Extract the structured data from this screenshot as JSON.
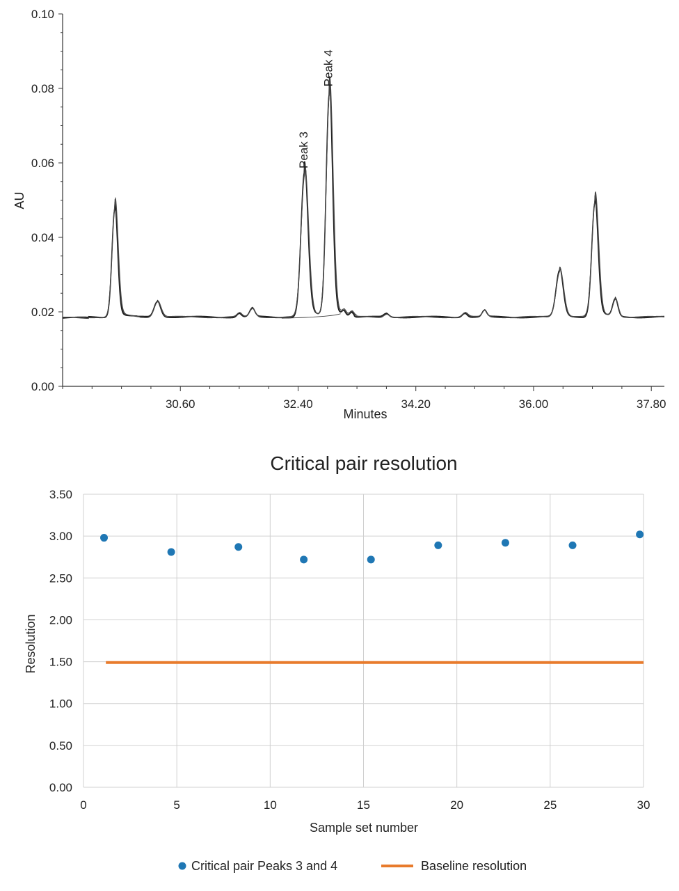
{
  "chart_data": [
    {
      "type": "line",
      "title": "",
      "xlabel": "Minutes",
      "ylabel": "AU",
      "xlim": [
        28.8,
        38.0
      ],
      "ylim": [
        0.0,
        0.1
      ],
      "x_ticks": [
        30.6,
        32.4,
        34.2,
        36.0,
        37.8
      ],
      "x_tick_labels": [
        "30.60",
        "32.40",
        "34.20",
        "36.00",
        "37.80"
      ],
      "y_ticks": [
        0.0,
        0.02,
        0.04,
        0.06,
        0.08,
        0.1
      ],
      "y_tick_labels": [
        "0.00",
        "0.02",
        "0.04",
        "0.06",
        "0.08",
        "0.10"
      ],
      "grid": false,
      "baseline_level": 0.0186,
      "peaks": [
        {
          "x": 29.6,
          "height": 0.048,
          "width": 0.045
        },
        {
          "x": 30.25,
          "height": 0.0228,
          "width": 0.05
        },
        {
          "x": 31.5,
          "height": 0.0196,
          "width": 0.035
        },
        {
          "x": 31.7,
          "height": 0.0208,
          "width": 0.04
        },
        {
          "x": 32.5,
          "height": 0.057,
          "width": 0.055
        },
        {
          "x": 32.88,
          "height": 0.0785,
          "width": 0.05
        },
        {
          "x": 33.1,
          "height": 0.0198,
          "width": 0.03
        },
        {
          "x": 33.22,
          "height": 0.0197,
          "width": 0.03
        },
        {
          "x": 33.75,
          "height": 0.0195,
          "width": 0.04
        },
        {
          "x": 34.95,
          "height": 0.0197,
          "width": 0.04
        },
        {
          "x": 35.25,
          "height": 0.0203,
          "width": 0.035
        },
        {
          "x": 36.4,
          "height": 0.031,
          "width": 0.055
        },
        {
          "x": 36.94,
          "height": 0.0495,
          "width": 0.05
        },
        {
          "x": 37.25,
          "height": 0.0232,
          "width": 0.04
        }
      ],
      "annotations": [
        {
          "text": "Peak 3",
          "x": 32.5,
          "y": 0.0585
        },
        {
          "text": "Peak 4",
          "x": 32.88,
          "y": 0.0805
        }
      ]
    },
    {
      "type": "scatter",
      "title": "Critical pair resolution",
      "xlabel": "Sample set number",
      "ylabel": "Resolution",
      "xlim": [
        0,
        30
      ],
      "ylim": [
        0,
        3.5
      ],
      "x_ticks": [
        0,
        5,
        10,
        15,
        20,
        25,
        30
      ],
      "x_tick_labels": [
        "0",
        "5",
        "10",
        "15",
        "20",
        "25",
        "30"
      ],
      "y_ticks": [
        0,
        0.5,
        1.0,
        1.5,
        2.0,
        2.5,
        3.0,
        3.5
      ],
      "y_tick_labels": [
        "0.00",
        "0.50",
        "1.00",
        "1.50",
        "2.00",
        "2.50",
        "3.00",
        "3.50"
      ],
      "grid": true,
      "legend_position": "bottom",
      "series": [
        {
          "name": "Critical pair Peaks 3 and 4",
          "kind": "scatter",
          "color": "#1f77b4",
          "x": [
            1.1,
            4.7,
            8.3,
            11.8,
            15.4,
            19.0,
            22.6,
            26.2,
            29.8
          ],
          "y": [
            2.98,
            2.81,
            2.87,
            2.72,
            2.72,
            2.89,
            2.92,
            2.89,
            3.02
          ]
        },
        {
          "name": "Baseline resolution",
          "kind": "line",
          "color": "#e87b2c",
          "x": [
            1.2,
            30.0
          ],
          "y": [
            1.49,
            1.49
          ]
        }
      ]
    }
  ]
}
